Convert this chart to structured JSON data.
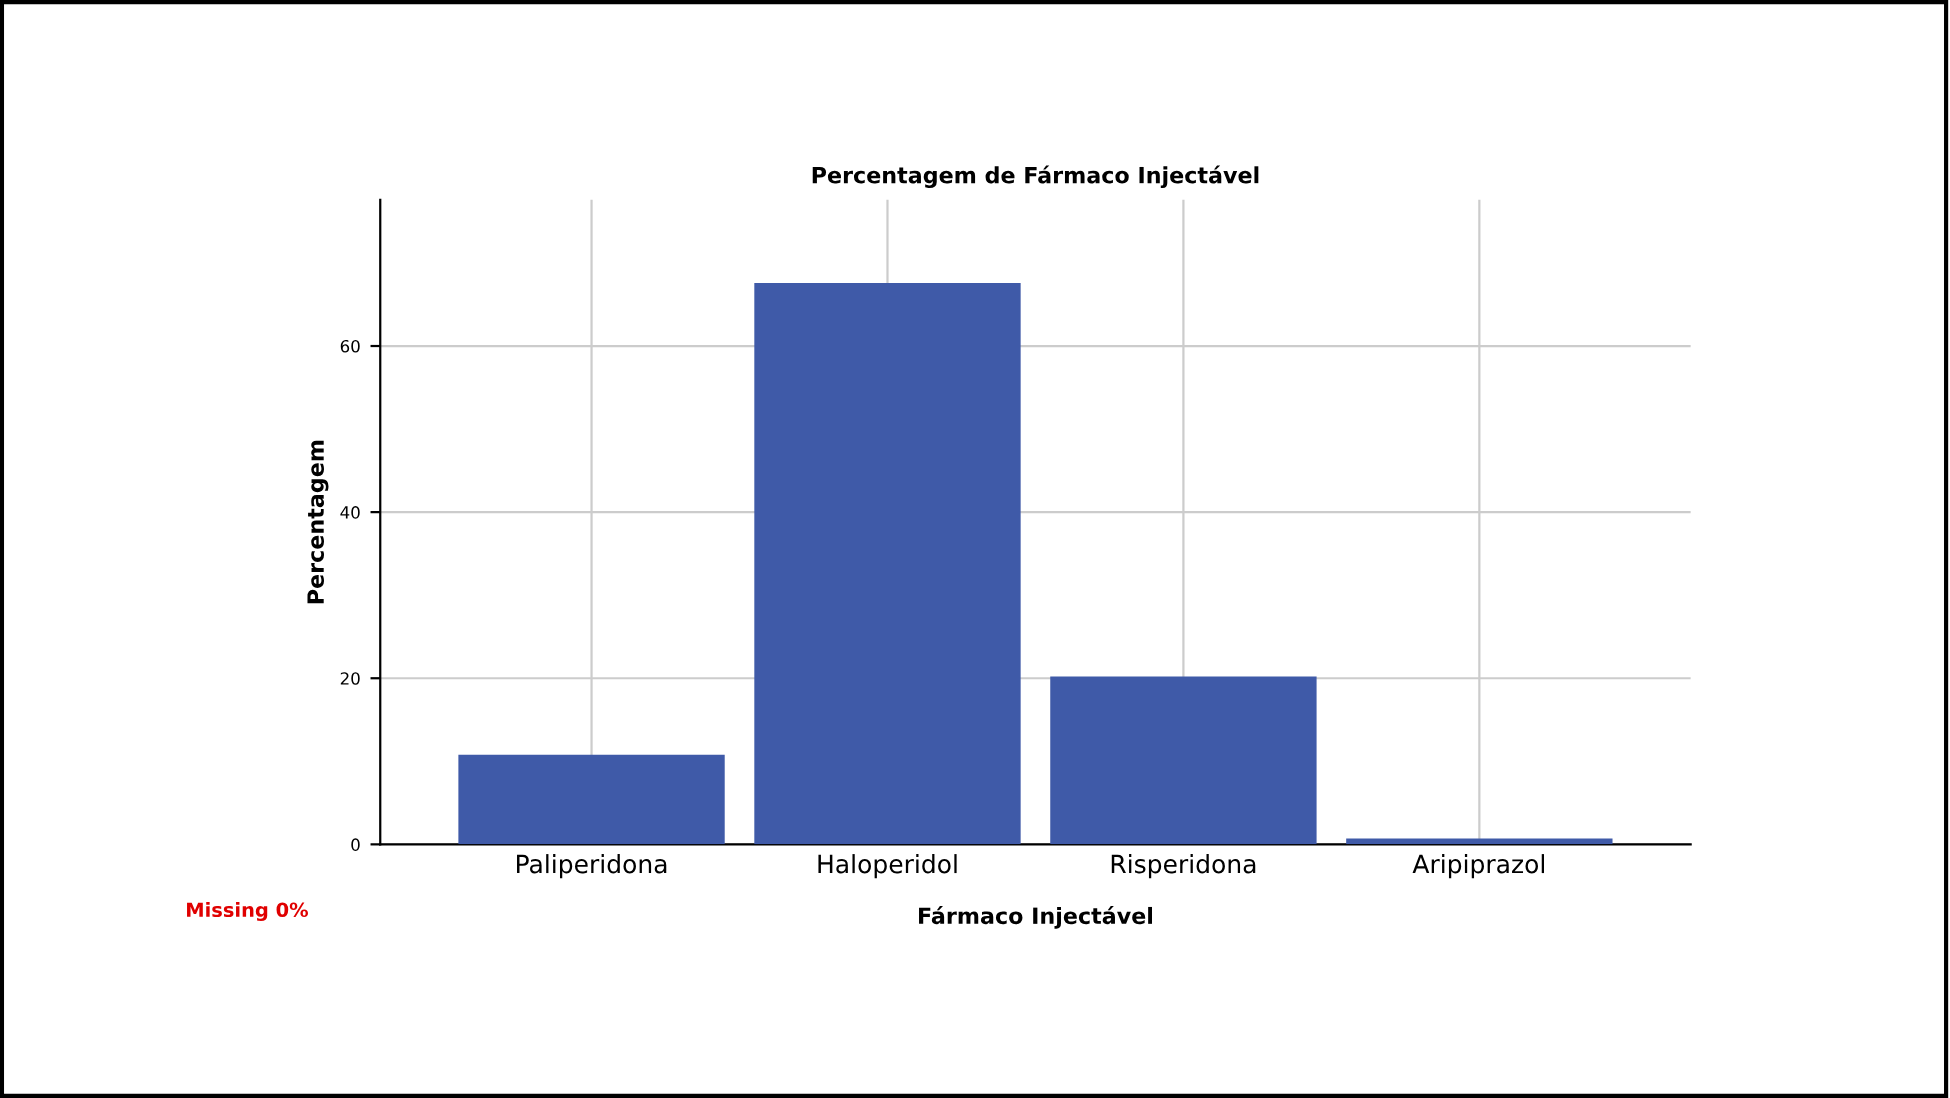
{
  "chart_data": {
    "type": "bar",
    "title": "Percentagem de Fármaco Injectável",
    "xlabel": "Fármaco Injectável",
    "ylabel": "Percentagem",
    "categories": [
      "Paliperidona",
      "Haloperidol",
      "Risperidona",
      "Aripiprazol"
    ],
    "values": [
      10.8,
      67.6,
      20.2,
      0.7
    ],
    "color": "#3f5aa8",
    "ylim": [
      0,
      77.6
    ],
    "yticks": [
      0,
      20,
      40,
      60
    ],
    "grid": true,
    "annotations": [
      "Missing 0%"
    ]
  }
}
